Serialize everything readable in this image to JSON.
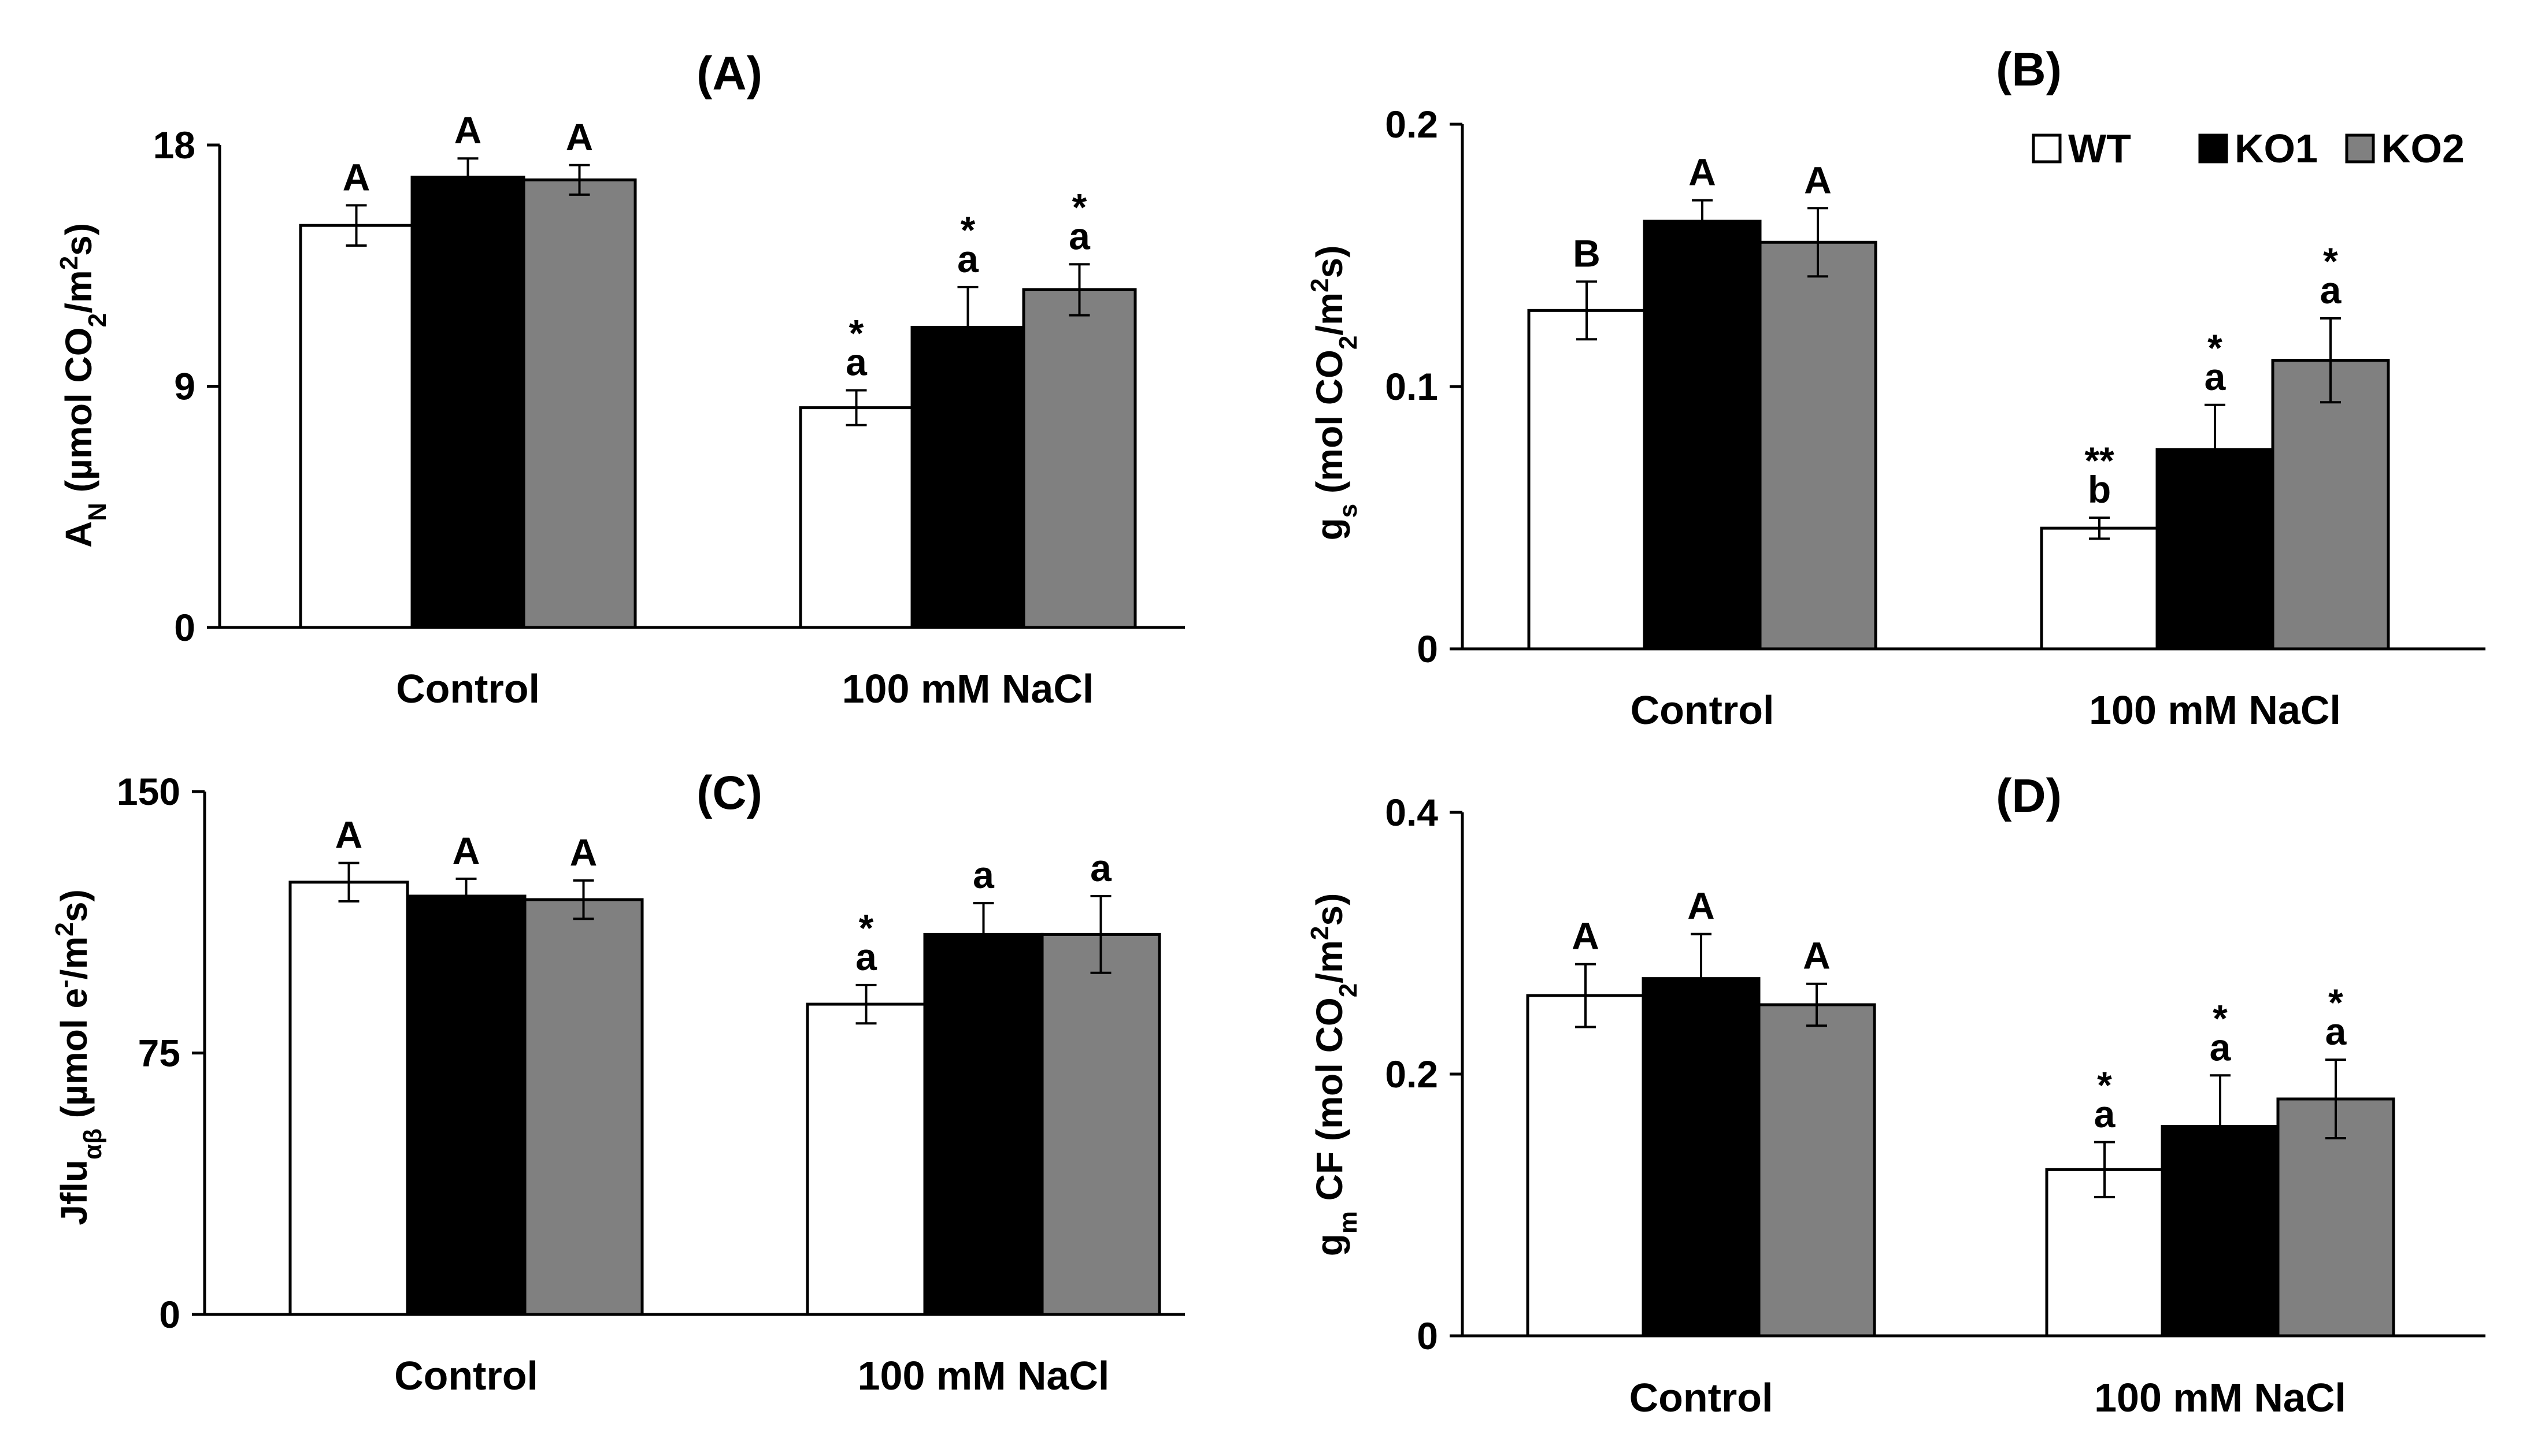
{
  "colors": {
    "WT": "#ffffff",
    "KO1": "#000000",
    "KO2": "#808080",
    "axis": "#000000"
  },
  "legend": [
    {
      "name": "WT",
      "color": "#ffffff"
    },
    {
      "name": "KO1",
      "color": "#000000"
    },
    {
      "name": "KO2",
      "color": "#808080"
    }
  ],
  "chart_data": [
    {
      "type": "bar",
      "title": "(A)",
      "ylabel": {
        "main": "A",
        "sub": "N",
        "unit": " (µmol CO",
        "unit_sub": "2",
        "unit_end": "/m",
        "unit_sup": "2",
        "unit_tail": "s)"
      },
      "ylim": [
        0,
        18
      ],
      "yticks": [
        0,
        9,
        18
      ],
      "categories": [
        "Control",
        "100 mM NaCl"
      ],
      "series": [
        {
          "name": "WT",
          "values": [
            15.0,
            8.2
          ],
          "errors": [
            0.75,
            0.65
          ],
          "annotations": [
            [
              "A"
            ],
            [
              "a",
              "*"
            ]
          ]
        },
        {
          "name": "KO1",
          "values": [
            16.8,
            11.2
          ],
          "errors": [
            0.7,
            1.5
          ],
          "annotations": [
            [
              "A"
            ],
            [
              "a",
              "*"
            ]
          ]
        },
        {
          "name": "KO2",
          "values": [
            16.7,
            12.6
          ],
          "errors": [
            0.55,
            0.95
          ],
          "annotations": [
            [
              "A"
            ],
            [
              "a",
              "*"
            ]
          ]
        }
      ]
    },
    {
      "type": "bar",
      "title": "(B)",
      "ylabel": {
        "main": "g",
        "sub": "s",
        "unit": " (mol CO",
        "unit_sub": "2",
        "unit_end": "/m",
        "unit_sup": "2",
        "unit_tail": "s)"
      },
      "ylim": [
        0,
        0.2
      ],
      "yticks": [
        0,
        0.1,
        0.2
      ],
      "categories": [
        "Control",
        "100 mM NaCl"
      ],
      "legend_position": "top-right",
      "series": [
        {
          "name": "WT",
          "values": [
            0.129,
            0.046
          ],
          "errors": [
            0.011,
            0.004
          ],
          "annotations": [
            [
              "B"
            ],
            [
              "b",
              "**"
            ]
          ]
        },
        {
          "name": "KO1",
          "values": [
            0.163,
            0.076
          ],
          "errors": [
            0.008,
            0.017
          ],
          "annotations": [
            [
              "A"
            ],
            [
              "a",
              "*"
            ]
          ]
        },
        {
          "name": "KO2",
          "values": [
            0.155,
            0.11
          ],
          "errors": [
            0.013,
            0.016
          ],
          "annotations": [
            [
              "A"
            ],
            [
              "a",
              "*"
            ]
          ]
        }
      ]
    },
    {
      "type": "bar",
      "title": "(C)",
      "ylabel": {
        "main": "Jflu",
        "sub": "αβ",
        "unit": " (µmol e",
        "unit_sup0": "-",
        "unit_end": "/m",
        "unit_sup": "2",
        "unit_tail": "s)"
      },
      "ylim": [
        0,
        150
      ],
      "yticks": [
        0,
        75,
        150
      ],
      "categories": [
        "Control",
        "100 mM NaCl"
      ],
      "series": [
        {
          "name": "WT",
          "values": [
            124,
            89
          ],
          "errors": [
            5.5,
            5.5
          ],
          "annotations": [
            [
              "A"
            ],
            [
              "a",
              "*"
            ]
          ]
        },
        {
          "name": "KO1",
          "values": [
            120,
            109
          ],
          "errors": [
            5,
            9
          ],
          "annotations": [
            [
              "A"
            ],
            [
              "a"
            ]
          ]
        },
        {
          "name": "KO2",
          "values": [
            119,
            109
          ],
          "errors": [
            5.5,
            11
          ],
          "annotations": [
            [
              "A"
            ],
            [
              "a"
            ]
          ]
        }
      ]
    },
    {
      "type": "bar",
      "title": "(D)",
      "ylabel": {
        "main": "g",
        "sub": "m",
        "unit": " CF (mol CO",
        "unit_sub": "2",
        "unit_end": "/m",
        "unit_sup": "2",
        "unit_tail": "s)"
      },
      "ylim": [
        0,
        0.4
      ],
      "yticks": [
        0,
        0.2,
        0.4
      ],
      "categories": [
        "Control",
        "100 mM NaCl"
      ],
      "series": [
        {
          "name": "WT",
          "values": [
            0.26,
            0.127
          ],
          "errors": [
            0.024,
            0.021
          ],
          "annotations": [
            [
              "A"
            ],
            [
              "a",
              "*"
            ]
          ]
        },
        {
          "name": "KO1",
          "values": [
            0.273,
            0.16
          ],
          "errors": [
            0.034,
            0.039
          ],
          "annotations": [
            [
              "A"
            ],
            [
              "a",
              "*"
            ]
          ]
        },
        {
          "name": "KO2",
          "values": [
            0.253,
            0.181
          ],
          "errors": [
            0.016,
            0.03
          ],
          "annotations": [
            [
              "A"
            ],
            [
              "a",
              "*"
            ]
          ]
        }
      ]
    }
  ]
}
